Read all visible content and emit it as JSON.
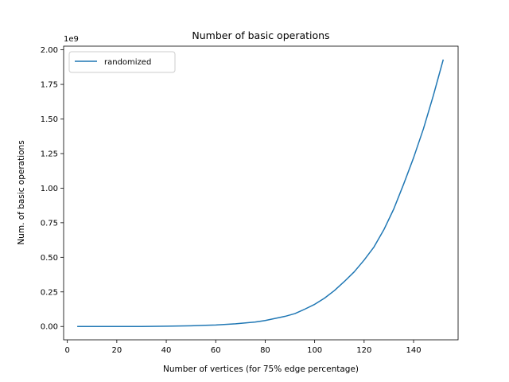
{
  "chart_data": {
    "type": "line",
    "title": "Number of basic operations",
    "xlabel": "Number of vertices (for 75% edge percentage)",
    "ylabel": "Num. of basic operations",
    "y_offset_label": "1e9",
    "xlim": [
      -1.5,
      158
    ],
    "ylim": [
      -0.0965,
      2.0265
    ],
    "x_ticks": [
      0,
      20,
      40,
      60,
      80,
      100,
      120,
      140
    ],
    "x_tick_labels": [
      "0",
      "20",
      "40",
      "60",
      "80",
      "100",
      "120",
      "140"
    ],
    "y_ticks": [
      0,
      0.25,
      0.5,
      0.75,
      1.0,
      1.25,
      1.5,
      1.75,
      2.0
    ],
    "y_tick_labels": [
      "0.00",
      "0.25",
      "0.50",
      "0.75",
      "1.00",
      "1.25",
      "1.50",
      "1.75",
      "2.00"
    ],
    "legend_position": "upper-left",
    "grid": false,
    "series": [
      {
        "name": "randomized",
        "color": "#1f77b4",
        "x": [
          4,
          10,
          20,
          30,
          40,
          50,
          60,
          68,
          76,
          80,
          84,
          88,
          92,
          96,
          100,
          104,
          108,
          112,
          116,
          120,
          124,
          128,
          132,
          136,
          140,
          144,
          148,
          150,
          152
        ],
        "y": [
          0,
          0,
          0,
          0,
          0.002,
          0.005,
          0.011,
          0.019,
          0.032,
          0.043,
          0.058,
          0.073,
          0.093,
          0.125,
          0.16,
          0.205,
          0.26,
          0.325,
          0.395,
          0.48,
          0.575,
          0.7,
          0.85,
          1.03,
          1.22,
          1.43,
          1.67,
          1.8,
          1.93
        ]
      }
    ]
  }
}
